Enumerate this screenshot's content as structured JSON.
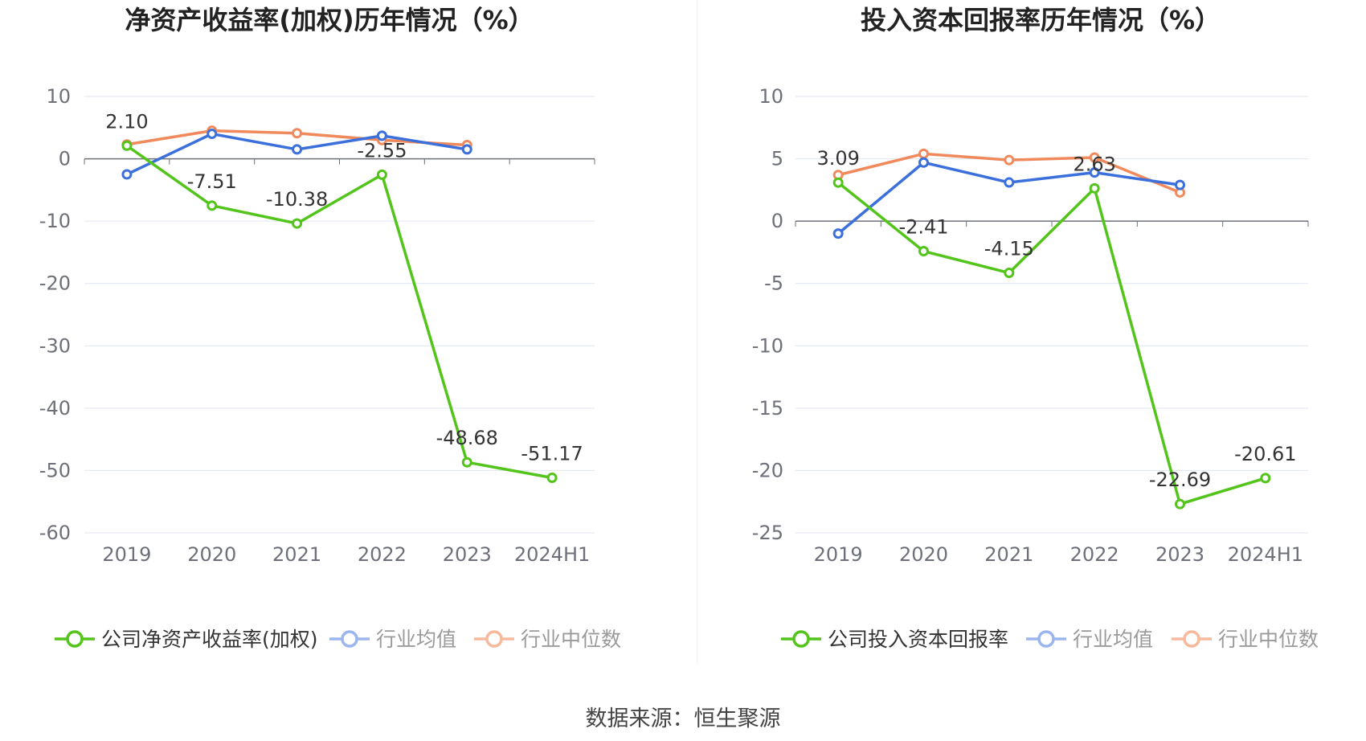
{
  "source": "数据来源：恒生聚源",
  "charts": [
    {
      "title": "净资产收益率(加权)历年情况（%）",
      "categories": [
        "2019",
        "2020",
        "2021",
        "2022",
        "2023",
        "2024H1"
      ],
      "y_ticks": [
        10,
        0,
        -10,
        -20,
        -30,
        -40,
        -50,
        -60
      ],
      "legend": [
        "公司净资产收益率(加权)",
        "行业均值",
        "行业中位数"
      ]
    },
    {
      "title": "投入资本回报率历年情况（%）",
      "categories": [
        "2019",
        "2020",
        "2021",
        "2022",
        "2023",
        "2024H1"
      ],
      "y_ticks": [
        10,
        5,
        0,
        -5,
        -10,
        -15,
        -20,
        -25
      ],
      "legend": [
        "公司投入资本回报率",
        "行业均值",
        "行业中位数"
      ]
    }
  ],
  "chart_data": [
    {
      "type": "line",
      "title": "净资产收益率(加权)历年情况（%）",
      "categories": [
        "2019",
        "2020",
        "2021",
        "2022",
        "2023",
        "2024H1"
      ],
      "ylim": [
        -60,
        10
      ],
      "grid": true,
      "legend_position": "bottom",
      "series": [
        {
          "name": "公司净资产收益率(加权)",
          "color": "#52c41a",
          "values": [
            2.1,
            -7.51,
            -10.38,
            -2.55,
            -48.68,
            -51.17
          ],
          "labels": [
            "2.10",
            "-7.51",
            "-10.38",
            "-2.55",
            "-48.68",
            "-51.17"
          ]
        },
        {
          "name": "行业均值",
          "color": "#3b6fdc",
          "values": [
            -2.5,
            4.0,
            1.5,
            3.7,
            1.5,
            null
          ]
        },
        {
          "name": "行业中位数",
          "color": "#f08a5d",
          "values": [
            2.3,
            4.5,
            4.1,
            3.0,
            2.2,
            null
          ]
        }
      ]
    },
    {
      "type": "line",
      "title": "投入资本回报率历年情况（%）",
      "categories": [
        "2019",
        "2020",
        "2021",
        "2022",
        "2023",
        "2024H1"
      ],
      "ylim": [
        -25,
        10
      ],
      "grid": true,
      "legend_position": "bottom",
      "series": [
        {
          "name": "公司投入资本回报率",
          "color": "#52c41a",
          "values": [
            3.09,
            -2.41,
            -4.15,
            2.63,
            -22.69,
            -20.61
          ],
          "labels": [
            "3.09",
            "-2.41",
            "-4.15",
            "2.63",
            "-22.69",
            "-20.61"
          ]
        },
        {
          "name": "行业均值",
          "color": "#3b6fdc",
          "values": [
            -1.0,
            4.7,
            3.1,
            3.9,
            2.9,
            null
          ]
        },
        {
          "name": "行业中位数",
          "color": "#f08a5d",
          "values": [
            3.7,
            5.4,
            4.9,
            5.1,
            2.3,
            null
          ]
        }
      ]
    }
  ]
}
